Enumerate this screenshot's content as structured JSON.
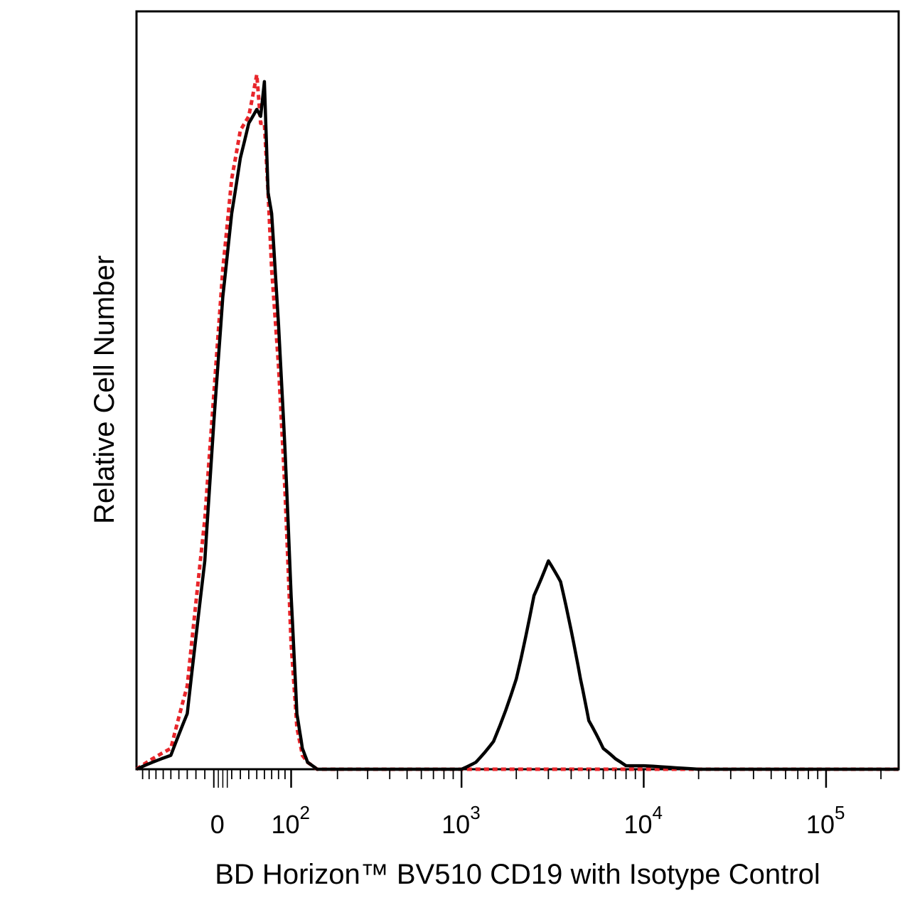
{
  "chart_data": {
    "type": "line",
    "title": "",
    "xlabel": "BD Horizon™ BV510 CD19 with Isotype Control",
    "ylabel": "Relative Cell Number",
    "x_scale": "biexponential",
    "xlim": [
      -100,
      250000
    ],
    "ylim": [
      0,
      100
    ],
    "grid": false,
    "legend": "none",
    "x_ticks": [
      {
        "value": 0,
        "base": "0",
        "exp": ""
      },
      {
        "value": 100,
        "base": "10",
        "exp": "2"
      },
      {
        "value": 1000,
        "base": "10",
        "exp": "3"
      },
      {
        "value": 10000,
        "base": "10",
        "exp": "4"
      },
      {
        "value": 100000,
        "base": "10",
        "exp": "5"
      }
    ],
    "series": [
      {
        "color": "#000000",
        "style": "solid",
        "x": [
          -100,
          -50,
          -30,
          -10,
          0,
          10,
          20,
          30,
          40,
          45,
          50,
          55,
          60,
          65,
          70,
          80,
          90,
          100,
          110,
          120,
          130,
          150,
          200,
          300,
          500,
          800,
          1000,
          1200,
          1500,
          2000,
          2500,
          3000,
          3500,
          4000,
          4500,
          5000,
          6000,
          7000,
          8000,
          10000,
          15000,
          20000,
          50000,
          100000,
          250000
        ],
        "y": [
          0,
          2,
          8,
          30,
          50,
          68,
          80,
          88,
          93,
          94,
          95,
          94,
          99,
          83,
          80,
          64,
          46,
          25,
          8,
          3,
          1,
          0,
          0,
          0,
          0,
          0,
          0,
          1,
          4,
          13,
          25,
          30,
          27,
          20,
          13,
          7,
          3,
          1.5,
          0.5,
          0.5,
          0.2,
          0,
          0,
          0,
          0
        ]
      },
      {
        "color": "#e8262b",
        "style": "dotted",
        "x": [
          -100,
          -50,
          -30,
          -10,
          0,
          10,
          20,
          30,
          40,
          45,
          50,
          55,
          60,
          65,
          70,
          80,
          90,
          100,
          110,
          120,
          130,
          150,
          200,
          300,
          500,
          1000,
          10000,
          100000,
          250000
        ],
        "y": [
          0,
          3,
          12,
          36,
          54,
          72,
          85,
          92,
          94,
          97,
          100,
          93,
          93,
          83,
          72,
          58,
          40,
          18,
          6,
          2,
          1,
          0,
          0,
          0,
          0,
          0,
          0,
          0,
          0
        ]
      }
    ]
  }
}
